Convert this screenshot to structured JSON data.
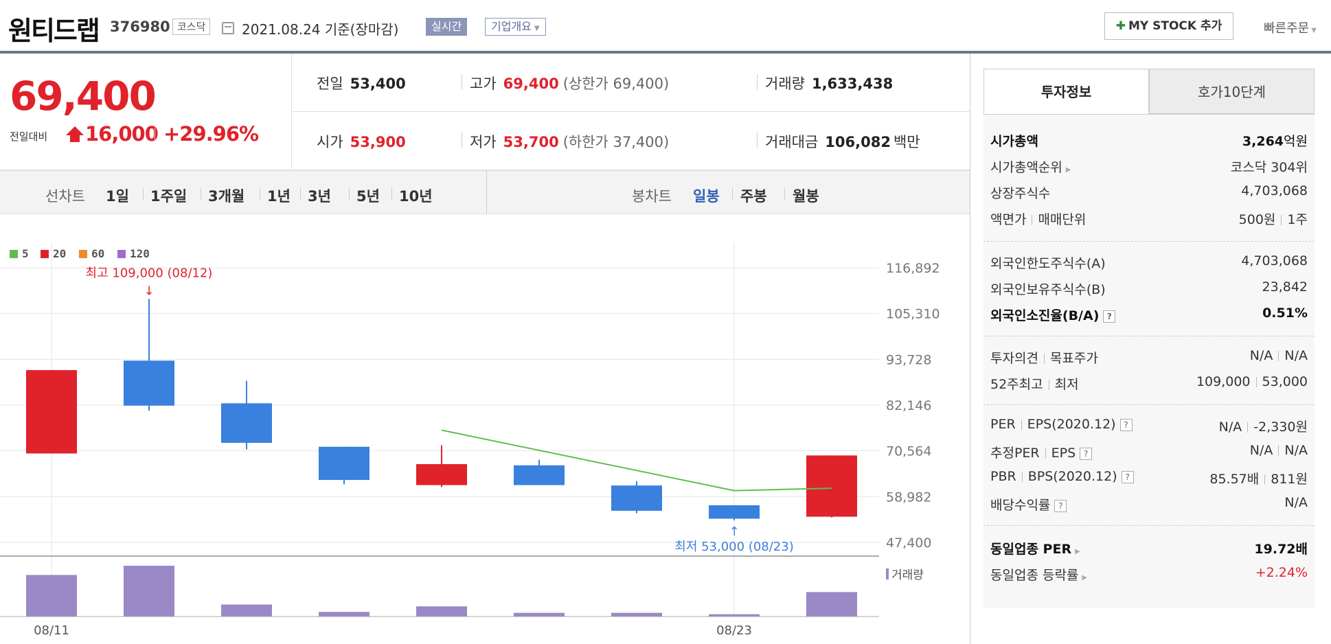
{
  "header": {
    "stock_name": "원티드랩",
    "stock_code": "376980",
    "market": "코스닥",
    "date_text": "2021.08.24 기준(장마감)",
    "realtime_label": "실시간",
    "overview_label": "기업개요",
    "mystock_label": "MY STOCK 추가",
    "quick_order_label": "빠른주문"
  },
  "quote": {
    "price": "69,400",
    "change_label": "전일대비",
    "change_amount": "16,000",
    "change_rate": "+29.96%",
    "prev_label": "전일",
    "prev_value": "53,400",
    "high_label": "고가",
    "high_value": "69,400",
    "upper_limit": "(상한가 69,400)",
    "volume_label": "거래량",
    "volume_value": "1,633,438",
    "open_label": "시가",
    "open_value": "53,900",
    "low_label": "저가",
    "low_value": "53,700",
    "lower_limit": "(하한가 37,400)",
    "amount_label": "거래대금",
    "amount_value": "106,082",
    "amount_unit": "백만"
  },
  "tabs": {
    "line_chart_label": "선차트",
    "line_periods": [
      "1일",
      "1주일",
      "3개월",
      "1년",
      "3년",
      "5년",
      "10년"
    ],
    "candle_chart_label": "봉차트",
    "candle_periods": [
      "일봉",
      "주봉",
      "월봉"
    ],
    "active_candle": "일봉"
  },
  "colors": {
    "up": "#e0222b",
    "down": "#3a80de",
    "ma5": "#5fbd4e",
    "ma20": "#e0222b",
    "ma60": "#f08a2a",
    "ma120": "#a06ad0",
    "volume": "#9b88c6",
    "active_tab": "#2f5eb4"
  },
  "chart_data": {
    "type": "candlestick",
    "legend": [
      {
        "name": "5",
        "color": "#5fbd4e"
      },
      {
        "name": "20",
        "color": "#e0222b"
      },
      {
        "name": "60",
        "color": "#f08a2a"
      },
      {
        "name": "120",
        "color": "#a06ad0"
      }
    ],
    "y_ticks": [
      "116,892",
      "105,310",
      "93,728",
      "82,146",
      "70,564",
      "58,982",
      "47,400"
    ],
    "ylim": [
      47400,
      116892
    ],
    "x_tick_labels": [
      {
        "index": 0,
        "label": "08/11"
      },
      {
        "index": 7,
        "label": "08/23"
      }
    ],
    "candles": [
      {
        "open": 69900,
        "high": 91000,
        "low": 69900,
        "close": 91000
      },
      {
        "open": 93400,
        "high": 109000,
        "low": 80700,
        "close": 82000
      },
      {
        "open": 82600,
        "high": 88300,
        "low": 70900,
        "close": 72600
      },
      {
        "open": 71600,
        "high": 71600,
        "low": 62100,
        "close": 63200
      },
      {
        "open": 61900,
        "high": 72000,
        "low": 61400,
        "close": 67200
      },
      {
        "open": 66900,
        "high": 68300,
        "low": 62000,
        "close": 61900
      },
      {
        "open": 61800,
        "high": 62900,
        "low": 54800,
        "close": 55400
      },
      {
        "open": 56800,
        "high": 56800,
        "low": 53000,
        "close": 53400
      },
      {
        "open": 53900,
        "high": 69400,
        "low": 53700,
        "close": 69400
      }
    ],
    "ma5": [
      null,
      null,
      null,
      null,
      75800,
      null,
      null,
      60500,
      61100
    ],
    "volume_label": "거래량",
    "volume": [
      9.0,
      11.0,
      2.6,
      1.0,
      2.2,
      0.8,
      0.8,
      0.5,
      5.3
    ],
    "annotations": {
      "high": "최고 109,000 (08/12)",
      "low": "최저 53,000 (08/23)"
    }
  },
  "side": {
    "tabs": [
      "투자정보",
      "호가10단계"
    ],
    "market_cap_label": "시가총액",
    "market_cap_value": "3,264",
    "market_cap_unit": "억원",
    "market_cap_rank_label": "시가총액순위",
    "market_cap_rank_value": "코스닥 304위",
    "listed_shares_label": "상장주식수",
    "listed_shares_value": "4,703,068",
    "par_value_label": "액면가",
    "trade_unit_label": "매매단위",
    "par_value": "500원",
    "trade_unit_value": "1주",
    "foreign_limit_label": "외국인한도주식수(A)",
    "foreign_limit_value": "4,703,068",
    "foreign_held_label": "외국인보유주식수(B)",
    "foreign_held_value": "23,842",
    "foreign_ratio_label": "외국인소진율(B/A)",
    "foreign_ratio_value": "0.51%",
    "opinion_label": "투자의견",
    "target_label": "목표주가",
    "opinion_value": "N/A",
    "target_value": "N/A",
    "w52_high_label": "52주최고",
    "w52_low_label": "최저",
    "w52_high_value": "109,000",
    "w52_low_value": "53,000",
    "per_label": "PER",
    "eps_label": "EPS(2020.12)",
    "per_value": "N/A",
    "eps_value": "-2,330원",
    "est_per_label": "추정PER",
    "est_eps_label": "EPS",
    "est_per_value": "N/A",
    "est_eps_value": "N/A",
    "pbr_label": "PBR",
    "bps_label": "BPS(2020.12)",
    "pbr_value": "85.57배",
    "bps_value": "811원",
    "dividend_label": "배당수익률",
    "dividend_value": "N/A",
    "industry_per_label": "동일업종 PER",
    "industry_per_value": "19.72배",
    "industry_rate_label": "동일업종 등락률",
    "industry_rate_value": "+2.24%"
  }
}
